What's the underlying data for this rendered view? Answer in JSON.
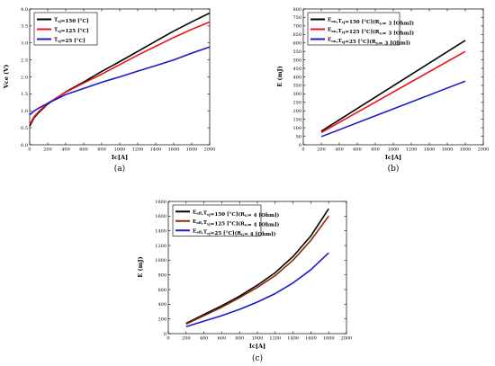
{
  "chart_data": [
    {
      "type": "line",
      "caption": "(a)",
      "xlabel": "Ic[A]",
      "ylabel": "Vce (V)",
      "xlim": [
        0,
        2000
      ],
      "ylim": [
        0.0,
        4.0
      ],
      "xticks": [
        "0",
        "200",
        "400",
        "600",
        "800",
        "1000",
        "1200",
        "1400",
        "1600",
        "1800",
        "2000"
      ],
      "yticks": [
        "0.0",
        "0.5",
        "1.0",
        "1.5",
        "2.0",
        "2.5",
        "3.0",
        "3.5",
        "4.0"
      ],
      "legend_position": "top-left",
      "grid": false,
      "series": [
        {
          "name": "T_vj=150 [°C]",
          "sub": "vj",
          "label_main": "T",
          "label_rest": "=150 [°C]",
          "color": "#000000",
          "x": [
            0,
            50,
            100,
            200,
            400,
            600,
            800,
            1000,
            1200,
            1400,
            1600,
            1800,
            2000
          ],
          "y": [
            0.55,
            0.8,
            0.95,
            1.2,
            1.56,
            1.85,
            2.16,
            2.45,
            2.75,
            3.05,
            3.35,
            3.62,
            3.88
          ]
        },
        {
          "name": "T_vj=125 [°C]",
          "sub": "vj",
          "label_main": "T",
          "label_rest": "=125 [°C]",
          "color": "#e8161c",
          "x": [
            0,
            50,
            100,
            200,
            400,
            600,
            800,
            1000,
            1200,
            1400,
            1600,
            1800,
            2000
          ],
          "y": [
            0.6,
            0.83,
            0.98,
            1.22,
            1.55,
            1.82,
            2.08,
            2.36,
            2.64,
            2.9,
            3.16,
            3.4,
            3.62
          ]
        },
        {
          "name": "T_vj=25 [°C]",
          "sub": "vj",
          "label_main": "T",
          "label_rest": "=25   [°C]",
          "color": "#1a1acc",
          "x": [
            0,
            50,
            100,
            200,
            400,
            600,
            800,
            1000,
            1200,
            1400,
            1600,
            1800,
            2000
          ],
          "y": [
            0.88,
            1.0,
            1.08,
            1.22,
            1.48,
            1.66,
            1.84,
            2.0,
            2.17,
            2.33,
            2.5,
            2.7,
            2.88
          ]
        }
      ]
    },
    {
      "type": "line",
      "caption": "(b)",
      "xlabel": "Ic[A]",
      "ylabel": "E (mJ)",
      "xlim": [
        0,
        2000
      ],
      "ylim": [
        0,
        800
      ],
      "xticks": [
        "0",
        "200",
        "400",
        "600",
        "800",
        "1000",
        "1200",
        "1400",
        "1600",
        "1800",
        "2000"
      ],
      "yticks": [
        "0",
        "50",
        "100",
        "150",
        "200",
        "250",
        "300",
        "350",
        "400",
        "450",
        "500",
        "550",
        "600",
        "650",
        "700",
        "750",
        "800"
      ],
      "legend_position": "top-left",
      "grid": false,
      "series": [
        {
          "name": "E_on, T_vj=150 [°C](R_G= 3 [Ohm])",
          "label_main": "E",
          "sub": "on",
          "label_mid": ",T",
          "sub2": "vj",
          "label_rest": "=150 [°C](R",
          "sub3": "G",
          "label_end": "= 3 [Ohm])",
          "color": "#000000",
          "x": [
            200,
            1800
          ],
          "y": [
            80,
            615
          ]
        },
        {
          "name": "E_on, T_vj=125 [°C](R_G= 3 [Ohm])",
          "label_main": "E",
          "sub": "on",
          "label_mid": ",T",
          "sub2": "vj",
          "label_rest": "=125 [°C](R",
          "sub3": "G",
          "label_end": "= 3 [Ohm])",
          "color": "#e8161c",
          "x": [
            200,
            1800
          ],
          "y": [
            72,
            550
          ]
        },
        {
          "name": "E_on, T_vj=25 [°C](R_G= 3 [Ohm])",
          "label_main": "E",
          "sub": "on",
          "label_mid": ",T",
          "sub2": "vj",
          "label_rest": "=25   [°C](R",
          "sub3": "G",
          "label_end": "= 3 [Ohm])",
          "color": "#1a1acc",
          "x": [
            200,
            1800
          ],
          "y": [
            48,
            375
          ]
        }
      ]
    },
    {
      "type": "line",
      "caption": "(c)",
      "xlabel": "Ic[A]",
      "ylabel": "E (mJ)",
      "xlim": [
        0,
        2000
      ],
      "ylim": [
        0,
        1800
      ],
      "xticks": [
        "0",
        "200",
        "400",
        "600",
        "800",
        "1000",
        "1200",
        "1400",
        "1600",
        "1800",
        "2000"
      ],
      "yticks": [
        "0",
        "200",
        "400",
        "600",
        "800",
        "1000",
        "1200",
        "1400",
        "1600",
        "1800"
      ],
      "legend_position": "top-left",
      "grid": false,
      "series": [
        {
          "name": "E_off, T_vj=150 [°C](R_G= 4 [Ohm])",
          "label_main": "E",
          "sub": "off",
          "label_mid": ",T",
          "sub2": "vj",
          "label_rest": "=150 [°C](R",
          "sub3": "G",
          "label_end": "= 4 [Ohm])",
          "color": "#000000",
          "x": [
            200,
            400,
            600,
            800,
            1000,
            1200,
            1400,
            1600,
            1800
          ],
          "y": [
            140,
            260,
            380,
            510,
            660,
            830,
            1050,
            1330,
            1700
          ]
        },
        {
          "name": "E_off, T_vj=125 [°C](R_G= 4 [Ohm])",
          "label_main": "E",
          "sub": "off",
          "label_mid": ",T",
          "sub2": "vj",
          "label_rest": "=125 [°C](R",
          "sub3": "G",
          "label_end": "= 4 [Ohm])",
          "color": "#8b2a0a",
          "x": [
            200,
            400,
            600,
            800,
            1000,
            1200,
            1400,
            1600,
            1800
          ],
          "y": [
            130,
            245,
            360,
            490,
            630,
            790,
            1000,
            1270,
            1600
          ]
        },
        {
          "name": "E_off, T_vj=25 [°C](R_G= 4 [Ohm])",
          "label_main": "E",
          "sub": "off",
          "label_mid": ",T",
          "sub2": "vj",
          "label_rest": "=25   [°C](R",
          "sub3": "G",
          "label_end": "= 4 [Ohm])",
          "color": "#1a1acc",
          "x": [
            200,
            400,
            600,
            800,
            1000,
            1200,
            1400,
            1600,
            1800
          ],
          "y": [
            95,
            170,
            245,
            330,
            430,
            545,
            690,
            870,
            1100
          ]
        }
      ]
    }
  ]
}
